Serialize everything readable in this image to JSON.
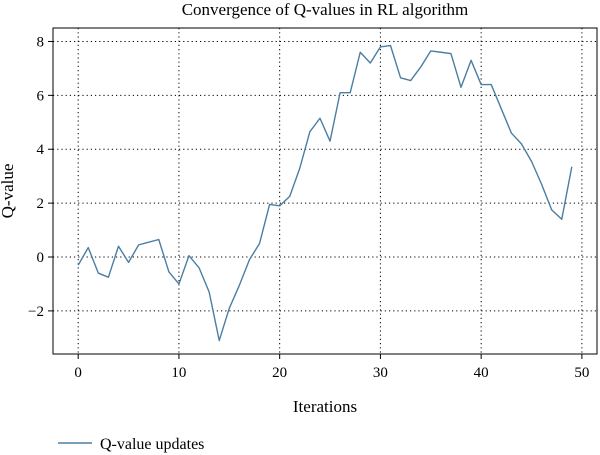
{
  "chart_data": {
    "type": "line",
    "title": "Convergence of Q-values in RL algorithm",
    "xlabel": "Iterations",
    "ylabel": "Q-value",
    "xlim": [
      -2.5,
      51.5
    ],
    "ylim": [
      -3.6,
      8.5
    ],
    "xticks": [
      0,
      10,
      20,
      30,
      40,
      50
    ],
    "yticks": [
      -2,
      0,
      2,
      4,
      6,
      8
    ],
    "xtick_labels": [
      "0",
      "10",
      "20",
      "30",
      "40",
      "50"
    ],
    "ytick_labels": [
      "−2",
      "0",
      "2",
      "4",
      "6",
      "8"
    ],
    "grid": true,
    "legend_position": "bottom-left",
    "series": [
      {
        "name": "Q-value updates",
        "color": "#4a7ea3",
        "x": [
          0,
          1,
          2,
          3,
          4,
          5,
          6,
          7,
          8,
          9,
          10,
          11,
          12,
          13,
          14,
          15,
          16,
          17,
          18,
          19,
          20,
          21,
          22,
          23,
          24,
          25,
          26,
          27,
          28,
          29,
          30,
          31,
          32,
          33,
          34,
          35,
          36,
          37,
          38,
          39,
          40,
          41,
          42,
          43,
          44,
          45,
          46,
          47,
          48,
          49
        ],
        "values": [
          -0.3,
          0.35,
          -0.6,
          -0.75,
          0.4,
          -0.2,
          0.45,
          0.55,
          0.65,
          -0.55,
          -1.0,
          0.05,
          -0.4,
          -1.3,
          -3.1,
          -1.9,
          -1.05,
          -0.1,
          0.5,
          1.95,
          1.9,
          2.25,
          3.3,
          4.65,
          5.15,
          4.3,
          6.1,
          6.1,
          7.6,
          7.2,
          7.8,
          7.85,
          6.65,
          6.55,
          7.05,
          7.65,
          7.6,
          7.55,
          6.3,
          7.3,
          6.4,
          6.4,
          5.5,
          4.6,
          4.2,
          3.55,
          2.7,
          1.75,
          1.4,
          3.35
        ]
      }
    ]
  }
}
